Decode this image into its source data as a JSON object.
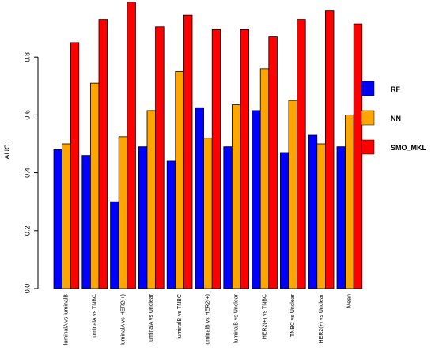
{
  "chart_data": {
    "type": "bar",
    "title": "",
    "xlabel": "",
    "ylabel": "AUC",
    "ylim": [
      0,
      1.0
    ],
    "yticks": [
      "0.0",
      "0.2",
      "0.4",
      "0.6",
      "0.8"
    ],
    "grid": false,
    "legend_position": "right",
    "categories": [
      "luminalA vs luminalB",
      "luminalA vs TNBC",
      "luminalA vs HER2(+)",
      "luminalA vs Unclear",
      "luminalB vs TNBC",
      "luminalB vs HER2(+)",
      "luminalB vs Unclear",
      "HER2(+) vs TNBC",
      "TNBC vs Unclear",
      "HER2(+) vs Unclear",
      "Mean"
    ],
    "series": [
      {
        "name": "RF",
        "color": "#0000ff",
        "values": [
          0.48,
          0.46,
          0.3,
          0.49,
          0.44,
          0.625,
          0.49,
          0.615,
          0.47,
          0.53,
          0.49
        ]
      },
      {
        "name": "NN",
        "color": "#ffa500",
        "values": [
          0.5,
          0.71,
          0.525,
          0.615,
          0.75,
          0.52,
          0.635,
          0.76,
          0.65,
          0.5,
          0.6
        ]
      },
      {
        "name": "SMO_MKL",
        "color": "#ff0000",
        "values": [
          0.85,
          0.93,
          0.99,
          0.905,
          0.945,
          0.895,
          0.895,
          0.87,
          0.93,
          0.96,
          0.915
        ]
      }
    ]
  }
}
